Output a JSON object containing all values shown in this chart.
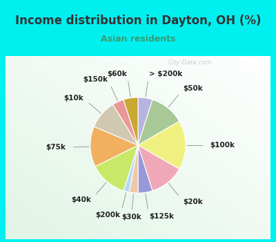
{
  "title": "Income distribution in Dayton, OH (%)",
  "subtitle": "Asian residents",
  "title_color": "#333333",
  "subtitle_color": "#3a9a6e",
  "bg_cyan": "#00f0f0",
  "bg_chart_tl": "#e8f8f0",
  "bg_chart_br": "#c8eedc",
  "watermark": "City-Data.com",
  "slices": [
    {
      "label": "> $200k",
      "value": 5,
      "color": "#b8b4e0"
    },
    {
      "label": "$50k",
      "value": 12,
      "color": "#a8c898"
    },
    {
      "label": "$100k",
      "value": 17,
      "color": "#f0f080"
    },
    {
      "label": "$20k",
      "value": 12,
      "color": "#f0a8b8"
    },
    {
      "label": "$125k",
      "value": 5,
      "color": "#9898d8"
    },
    {
      "label": "$30k",
      "value": 3,
      "color": "#f0c8a8"
    },
    {
      "label": "$200k",
      "value": 2,
      "color": "#b8d8f8"
    },
    {
      "label": "$40k",
      "value": 13,
      "color": "#c8e868"
    },
    {
      "label": "$75k",
      "value": 14,
      "color": "#f0b060"
    },
    {
      "label": "$10k",
      "value": 10,
      "color": "#d0c8b0"
    },
    {
      "label": "$150k",
      "value": 4,
      "color": "#e89898"
    },
    {
      "label": "$60k",
      "value": 5,
      "color": "#c8a830"
    }
  ],
  "label_fontsize": 7.5,
  "title_fontsize": 12,
  "subtitle_fontsize": 9
}
